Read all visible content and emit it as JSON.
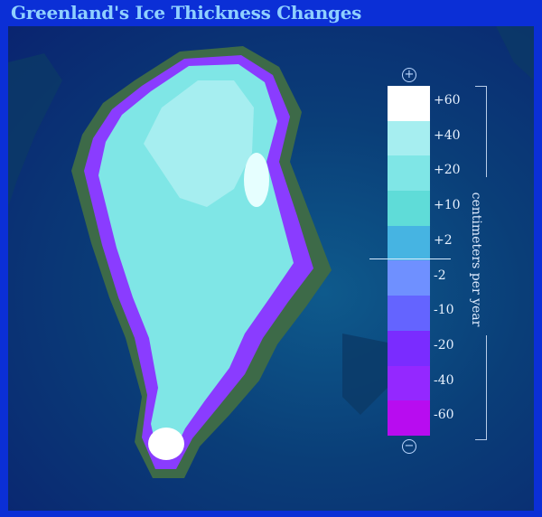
{
  "title": "Greenland's Ice Thickness Changes",
  "legend": {
    "unit": "centimeters per year",
    "plus_symbol": "+",
    "minus_symbol": "−",
    "classes": [
      {
        "label": "+60",
        "color": "#ffffff"
      },
      {
        "label": "+40",
        "color": "#a6eef0"
      },
      {
        "label": "+20",
        "color": "#7fe6e6"
      },
      {
        "label": "+10",
        "color": "#5fdcd8"
      },
      {
        "label": "+2",
        "color": "#46b4e2"
      },
      {
        "label": "-2",
        "color": "#6f90ff"
      },
      {
        "label": "-10",
        "color": "#6464ff"
      },
      {
        "label": "-20",
        "color": "#7a2cff"
      },
      {
        "label": "-40",
        "color": "#9428ff"
      },
      {
        "label": "-60",
        "color": "#b80cf0"
      }
    ]
  }
}
